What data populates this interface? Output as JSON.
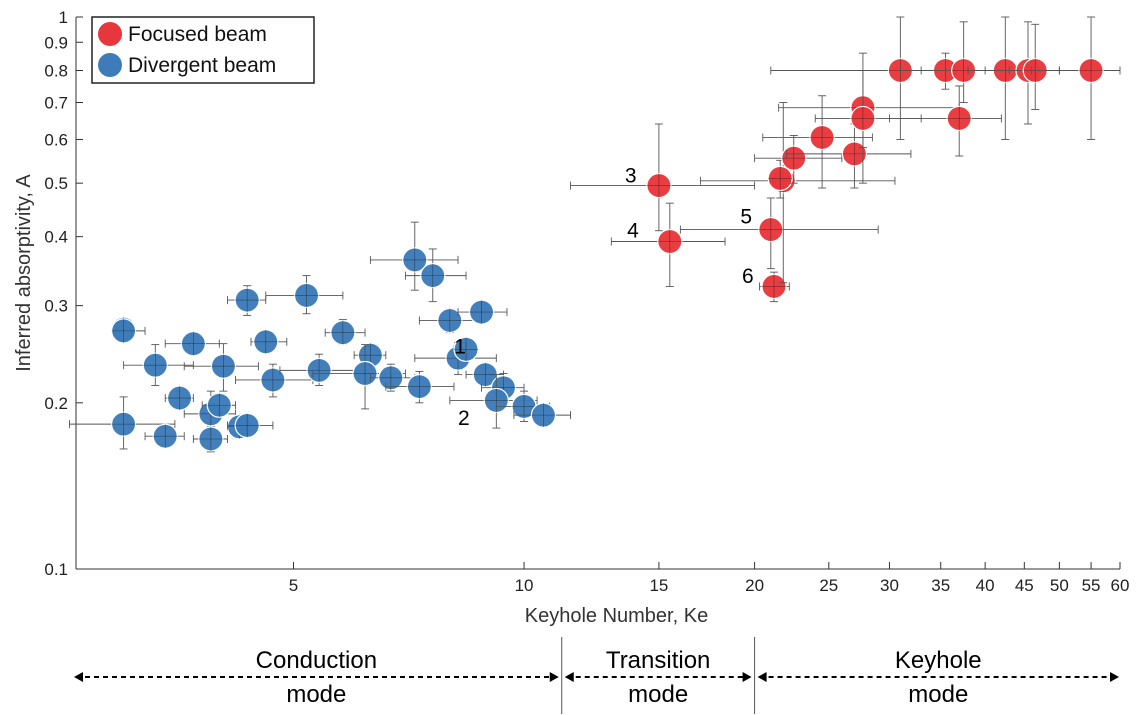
{
  "chart_data": {
    "type": "scatter",
    "xscale": "log",
    "yscale": "log",
    "xlim": [
      2.6,
      60
    ],
    "ylim": [
      0.1,
      1
    ],
    "xlabel": "Keyhole Number, Ke",
    "ylabel": "Inferred absorptivity, A",
    "xticks": [
      5,
      10,
      15,
      20,
      25,
      30,
      35,
      40,
      45,
      50,
      55,
      60
    ],
    "yticks": [
      0.1,
      0.2,
      0.3,
      0.4,
      0.5,
      0.6,
      0.7,
      0.8,
      0.9,
      1
    ],
    "ytick_labels": [
      "0.1",
      "0.2",
      "0.3",
      "0.4",
      "0.5",
      "0.6",
      "0.7",
      "0.8",
      "0.9",
      "1"
    ],
    "grid": false,
    "legend_position": "top-left",
    "colors": {
      "focused": "#e8373c",
      "divergent": "#3d7cb9",
      "errorbar": "#555555"
    },
    "series": [
      {
        "name": "Focused beam",
        "points": [
          {
            "x": 15.0,
            "y": 0.495,
            "xerr": [
              11.5,
              20.0
            ],
            "yerr": [
              0.41,
              0.64
            ]
          },
          {
            "x": 15.5,
            "y": 0.392,
            "xerr": [
              13.0,
              18.3
            ],
            "yerr": [
              0.325,
              0.46
            ]
          },
          {
            "x": 21.0,
            "y": 0.412,
            "xerr": [
              16.0,
              29.0
            ],
            "yerr": [
              0.35,
              0.47
            ]
          },
          {
            "x": 21.2,
            "y": 0.325,
            "xerr": [
              20.3,
              22.2
            ],
            "yerr": [
              0.305,
              0.345
            ]
          },
          {
            "x": 21.8,
            "y": 0.505,
            "xerr": [
              17.0,
              30.5
            ],
            "yerr": [
              0.33,
              0.7
            ]
          },
          {
            "x": 21.6,
            "y": 0.51,
            "xerr": [
              21.0,
              22.2
            ],
            "yerr": [
              0.47,
              0.55
            ]
          },
          {
            "x": 22.5,
            "y": 0.555,
            "xerr": [
              20.0,
              26.0
            ],
            "yerr": [
              0.5,
              0.61
            ]
          },
          {
            "x": 24.5,
            "y": 0.605,
            "xerr": [
              20.5,
              28.5
            ],
            "yerr": [
              0.49,
              0.72
            ]
          },
          {
            "x": 27.0,
            "y": 0.565,
            "xerr": [
              22.0,
              32.0
            ],
            "yerr": [
              0.49,
              0.64
            ]
          },
          {
            "x": 27.7,
            "y": 0.685,
            "xerr": [
              21.5,
              37.0
            ],
            "yerr": [
              0.58,
              0.8
            ]
          },
          {
            "x": 27.7,
            "y": 0.655,
            "xerr": [
              24.0,
              33.0
            ],
            "yerr": [
              0.5,
              0.86
            ]
          },
          {
            "x": 31.0,
            "y": 0.8,
            "xerr": [
              21.0,
              55.0
            ],
            "yerr": [
              0.6,
              1.0
            ]
          },
          {
            "x": 35.5,
            "y": 0.8,
            "xerr": [
              31.0,
              38.0
            ],
            "yerr": [
              0.74,
              0.86
            ]
          },
          {
            "x": 37.0,
            "y": 0.655,
            "xerr": [
              30.0,
              42.0
            ],
            "yerr": [
              0.56,
              0.75
            ]
          },
          {
            "x": 37.5,
            "y": 0.8,
            "xerr": [
              33.0,
              40.0
            ],
            "yerr": [
              0.7,
              0.98
            ]
          },
          {
            "x": 42.5,
            "y": 0.8,
            "xerr": [
              38.0,
              47.0
            ],
            "yerr": [
              0.6,
              1.0
            ]
          },
          {
            "x": 45.5,
            "y": 0.8,
            "xerr": [
              38.0,
              50.0
            ],
            "yerr": [
              0.64,
              0.98
            ]
          },
          {
            "x": 46.5,
            "y": 0.8,
            "xerr": [
              43.0,
              50.0
            ],
            "yerr": [
              0.68,
              0.97
            ]
          },
          {
            "x": 55.0,
            "y": 0.8,
            "xerr": [
              46.0,
              60.0
            ],
            "yerr": [
              0.6,
              1.0
            ]
          }
        ]
      },
      {
        "name": "Divergent beam",
        "points": [
          {
            "x": 3.0,
            "y": 0.272,
            "xerr": [
              2.9,
              3.1
            ],
            "yerr": [
              0.262,
              0.282
            ]
          },
          {
            "x": 3.0,
            "y": 0.27,
            "xerr": [
              2.9,
              3.2
            ],
            "yerr": [
              0.26,
              0.28
            ]
          },
          {
            "x": 3.0,
            "y": 0.183,
            "xerr": [
              2.55,
              3.5
            ],
            "yerr": [
              0.165,
              0.205
            ]
          },
          {
            "x": 3.3,
            "y": 0.234,
            "xerr": [
              3.0,
              3.7
            ],
            "yerr": [
              0.215,
              0.255
            ]
          },
          {
            "x": 3.4,
            "y": 0.174,
            "xerr": [
              3.2,
              3.6
            ],
            "yerr": [
              0.168,
              0.18
            ]
          },
          {
            "x": 3.55,
            "y": 0.204,
            "xerr": [
              3.4,
              3.7
            ],
            "yerr": [
              0.198,
              0.21
            ]
          },
          {
            "x": 3.7,
            "y": 0.256,
            "xerr": [
              3.4,
              4.0
            ],
            "yerr": [
              0.245,
              0.267
            ]
          },
          {
            "x": 3.9,
            "y": 0.191,
            "xerr": [
              3.6,
              4.2
            ],
            "yerr": [
              0.175,
              0.21
            ]
          },
          {
            "x": 3.9,
            "y": 0.172,
            "xerr": [
              3.7,
              4.1
            ],
            "yerr": [
              0.163,
              0.181
            ]
          },
          {
            "x": 4.0,
            "y": 0.198,
            "xerr": [
              3.8,
              4.2
            ],
            "yerr": [
              0.19,
              0.206
            ]
          },
          {
            "x": 4.05,
            "y": 0.233,
            "xerr": [
              3.6,
              4.5
            ],
            "yerr": [
              0.21,
              0.256
            ]
          },
          {
            "x": 4.25,
            "y": 0.181,
            "xerr": [
              4.1,
              4.5
            ],
            "yerr": [
              0.173,
              0.19
            ]
          },
          {
            "x": 4.35,
            "y": 0.182,
            "xerr": [
              4.1,
              4.7
            ],
            "yerr": [
              0.174,
              0.19
            ]
          },
          {
            "x": 4.35,
            "y": 0.307,
            "xerr": [
              4.1,
              4.6
            ],
            "yerr": [
              0.288,
              0.326
            ]
          },
          {
            "x": 4.6,
            "y": 0.258,
            "xerr": [
              4.4,
              4.9
            ],
            "yerr": [
              0.246,
              0.27
            ]
          },
          {
            "x": 4.7,
            "y": 0.22,
            "xerr": [
              4.2,
              5.3
            ],
            "yerr": [
              0.205,
              0.235
            ]
          },
          {
            "x": 5.2,
            "y": 0.313,
            "xerr": [
              4.6,
              5.8
            ],
            "yerr": [
              0.29,
              0.34
            ]
          },
          {
            "x": 5.4,
            "y": 0.229,
            "xerr": [
              4.8,
              6.2
            ],
            "yerr": [
              0.215,
              0.245
            ]
          },
          {
            "x": 5.8,
            "y": 0.268,
            "xerr": [
              5.5,
              6.2
            ],
            "yerr": [
              0.255,
              0.283
            ]
          },
          {
            "x": 6.3,
            "y": 0.244,
            "xerr": [
              6.0,
              6.6
            ],
            "yerr": [
              0.235,
              0.253
            ]
          },
          {
            "x": 6.2,
            "y": 0.226,
            "xerr": [
              5.3,
              7.0
            ],
            "yerr": [
              0.195,
              0.255
            ]
          },
          {
            "x": 6.7,
            "y": 0.222,
            "xerr": [
              6.3,
              7.2
            ],
            "yerr": [
              0.21,
              0.235
            ]
          },
          {
            "x": 7.2,
            "y": 0.363,
            "xerr": [
              6.3,
              8.2
            ],
            "yerr": [
              0.32,
              0.425
            ]
          },
          {
            "x": 7.6,
            "y": 0.34,
            "xerr": [
              7.0,
              8.4
            ],
            "yerr": [
              0.305,
              0.38
            ]
          },
          {
            "x": 7.3,
            "y": 0.214,
            "xerr": [
              6.6,
              8.1
            ],
            "yerr": [
              0.2,
              0.228
            ]
          },
          {
            "x": 8.0,
            "y": 0.282,
            "xerr": [
              7.3,
              8.8
            ],
            "yerr": [
              0.268,
              0.296
            ]
          },
          {
            "x": 8.2,
            "y": 0.241,
            "xerr": [
              7.2,
              9.2
            ],
            "yerr": [
              0.225,
              0.257
            ]
          },
          {
            "x": 8.4,
            "y": 0.25,
            "xerr": [
              8.1,
              8.7
            ],
            "yerr": [
              0.243,
              0.257
            ]
          },
          {
            "x": 8.8,
            "y": 0.292,
            "xerr": [
              8.2,
              9.5
            ],
            "yerr": [
              0.28,
              0.304
            ]
          },
          {
            "x": 8.9,
            "y": 0.225,
            "xerr": [
              8.4,
              9.4
            ],
            "yerr": [
              0.215,
              0.235
            ]
          },
          {
            "x": 9.4,
            "y": 0.213,
            "xerr": [
              8.8,
              10.0
            ],
            "yerr": [
              0.2,
              0.226
            ]
          },
          {
            "x": 9.2,
            "y": 0.202,
            "xerr": [
              8.0,
              10.4
            ],
            "yerr": [
              0.18,
              0.225
            ]
          },
          {
            "x": 10.0,
            "y": 0.197,
            "xerr": [
              9.2,
              10.8
            ],
            "yerr": [
              0.185,
              0.21
            ]
          },
          {
            "x": 10.6,
            "y": 0.19,
            "xerr": [
              9.7,
              11.5
            ],
            "yerr": [
              0.181,
              0.199
            ]
          }
        ]
      }
    ],
    "annotations": [
      {
        "text": "1",
        "x": 8.3,
        "y": 0.25
      },
      {
        "text": "2",
        "x": 8.6,
        "y": 0.198
      },
      {
        "text": "3",
        "x": 14.2,
        "y": 0.51
      },
      {
        "text": "4",
        "x": 14.3,
        "y": 0.405
      },
      {
        "text": "5",
        "x": 20.1,
        "y": 0.43
      },
      {
        "text": "6",
        "x": 20.2,
        "y": 0.335
      }
    ],
    "regions": [
      {
        "label_line1": "Conduction",
        "label_line2": "mode",
        "x_start": 2.6,
        "x_end": 11.2
      },
      {
        "label_line1": "Transition",
        "label_line2": "mode",
        "x_start": 11.2,
        "x_end": 20.0
      },
      {
        "label_line1": "Keyhole",
        "label_line2": "mode",
        "x_start": 20.0,
        "x_end": 60
      }
    ]
  }
}
